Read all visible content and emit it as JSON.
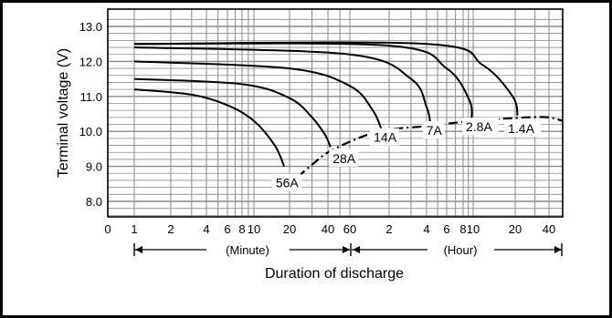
{
  "chart_data": {
    "type": "line",
    "title": "",
    "xlabel": "Duration of discharge",
    "ylabel": "Terminal voltage (V)",
    "x_unit": "minutes",
    "x_scale": "log",
    "ylim": [
      7.6,
      13.2
    ],
    "grid": true,
    "y_ticks": [
      "13.0",
      "12.0",
      "11.0",
      "10.0",
      "9.0",
      "8.0"
    ],
    "x_ticks": [
      {
        "label": "0",
        "minutes": 0.7
      },
      {
        "label": "1",
        "minutes": 1
      },
      {
        "label": "2",
        "minutes": 2
      },
      {
        "label": "4",
        "minutes": 4
      },
      {
        "label": "6",
        "minutes": 6
      },
      {
        "label": "8",
        "minutes": 8
      },
      {
        "label": "10",
        "minutes": 10
      },
      {
        "label": "20",
        "minutes": 20
      },
      {
        "label": "40",
        "minutes": 40
      },
      {
        "label": "60",
        "minutes": 60
      },
      {
        "label": "2",
        "minutes": 120
      },
      {
        "label": "4",
        "minutes": 240
      },
      {
        "label": "6",
        "minutes": 360
      },
      {
        "label": "8",
        "minutes": 480
      },
      {
        "label": "10",
        "minutes": 600
      },
      {
        "label": "20",
        "minutes": 1200
      },
      {
        "label": "40",
        "minutes": 2400
      }
    ],
    "range_labels": {
      "minute": "(Minute)",
      "hour": "(Hour)"
    },
    "series": [
      {
        "name": "56A",
        "points": [
          [
            1,
            11.2
          ],
          [
            3,
            11.05
          ],
          [
            6,
            10.75
          ],
          [
            10,
            10.3
          ],
          [
            15,
            9.6
          ],
          [
            18,
            9.0
          ]
        ]
      },
      {
        "name": "28A",
        "points": [
          [
            1,
            11.5
          ],
          [
            8,
            11.35
          ],
          [
            20,
            10.95
          ],
          [
            30,
            10.4
          ],
          [
            38,
            9.9
          ],
          [
            42,
            9.55
          ]
        ]
      },
      {
        "name": "14A",
        "points": [
          [
            1,
            12.0
          ],
          [
            20,
            11.8
          ],
          [
            60,
            11.3
          ],
          [
            90,
            10.6
          ],
          [
            105,
            10.05
          ]
        ]
      },
      {
        "name": "7A",
        "points": [
          [
            1,
            12.4
          ],
          [
            60,
            12.2
          ],
          [
            180,
            11.5
          ],
          [
            240,
            10.7
          ],
          [
            260,
            10.2
          ]
        ]
      },
      {
        "name": "2.8A",
        "points": [
          [
            1,
            12.5
          ],
          [
            120,
            12.45
          ],
          [
            360,
            11.8
          ],
          [
            550,
            10.9
          ],
          [
            580,
            10.35
          ]
        ]
      },
      {
        "name": "1.4A",
        "points": [
          [
            1,
            12.5
          ],
          [
            240,
            12.5
          ],
          [
            700,
            11.9
          ],
          [
            1150,
            11.0
          ],
          [
            1260,
            10.45
          ]
        ]
      },
      {
        "name": "",
        "style": "dash-dot",
        "points": [
          [
            18,
            8.35
          ],
          [
            30,
            9.05
          ],
          [
            45,
            9.5
          ],
          [
            100,
            10.0
          ],
          [
            240,
            10.15
          ],
          [
            600,
            10.3
          ],
          [
            1500,
            10.4
          ],
          [
            2400,
            10.4
          ],
          [
            3000,
            10.3
          ]
        ]
      }
    ],
    "colors": {
      "line": "#000000",
      "grid": "#8a8a8a",
      "background": "#ffffff"
    }
  }
}
